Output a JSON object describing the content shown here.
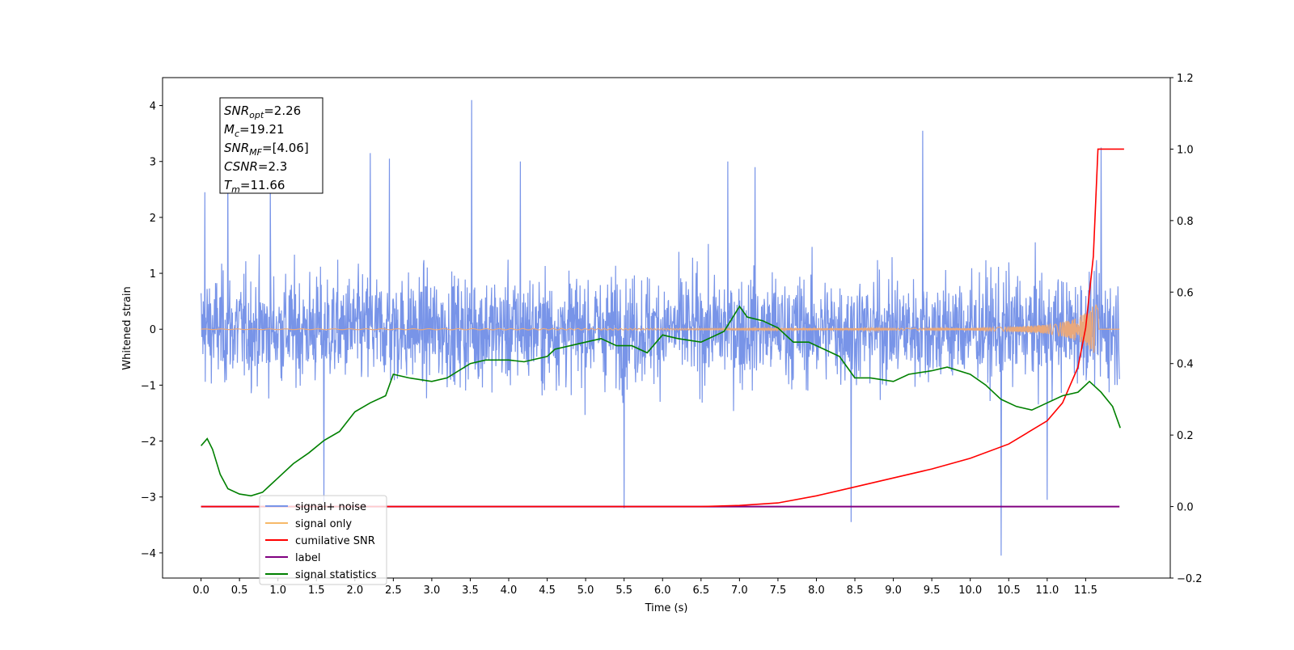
{
  "chart_data": {
    "type": "line",
    "xlabel": "Time (s)",
    "ylabel": "Whitened strain",
    "xlim": [
      -0.5,
      12.6
    ],
    "ylim": [
      -4.45,
      4.5
    ],
    "y2lim": [
      -0.2,
      1.2
    ],
    "x_ticks": [
      "0.0",
      "0.5",
      "1.0",
      "1.5",
      "2.0",
      "2.5",
      "3.0",
      "3.5",
      "4.0",
      "4.5",
      "5.0",
      "5.5",
      "6.0",
      "6.5",
      "7.0",
      "7.5",
      "8.0",
      "8.5",
      "9.0",
      "9.5",
      "10.0",
      "10.5",
      "11.0",
      "11.5"
    ],
    "y_ticks": [
      "4",
      "3",
      "2",
      "1",
      "0",
      "−1",
      "−2",
      "−3",
      "−4"
    ],
    "y2_ticks": [
      "1.2",
      "1.0",
      "0.8",
      "0.6",
      "0.4",
      "0.2",
      "0.0",
      "−0.2"
    ],
    "annotations": [
      {
        "name": "SNR",
        "sub": "opt",
        "value": "=2.26"
      },
      {
        "name": "M",
        "sub": "c",
        "value": "=19.21"
      },
      {
        "name": "SNR",
        "sub": "MF",
        "value": "=[4.06]"
      },
      {
        "name": "CSNR",
        "sub": "",
        "value": "=2.3"
      },
      {
        "name": "T",
        "sub": "m",
        "value": "=11.66"
      }
    ],
    "legend_position": "lower-left",
    "series": [
      {
        "name": "signal+ noise",
        "color": "#7894e8",
        "axis": "left",
        "description": "noise spikes; selected extrema",
        "peaks_x": [
          0.05,
          0.35,
          0.9,
          1.6,
          2.2,
          2.45,
          3.52,
          4.15,
          5.5,
          6.85,
          7.2,
          8.45,
          9.38,
          10.4,
          11.0,
          11.7
        ],
        "peaks_y": [
          2.45,
          2.9,
          2.6,
          -3.1,
          3.15,
          3.05,
          4.1,
          3.0,
          -3.2,
          3.0,
          2.9,
          -3.45,
          3.55,
          -4.05,
          -3.05,
          3.25
        ],
        "envelope": 2.0
      },
      {
        "name": "signal only",
        "color": "#e8a87c",
        "axis": "left",
        "x": [
          0,
          10.0,
          10.5,
          11.0,
          11.3,
          11.5,
          11.6,
          11.66,
          11.67,
          12.0
        ],
        "amplitude": [
          0.005,
          0.02,
          0.04,
          0.08,
          0.16,
          0.3,
          0.42,
          0.45,
          0.0,
          0.0
        ]
      },
      {
        "name": "cumilative SNR",
        "color": "#ff0000",
        "axis": "right",
        "x": [
          0,
          6.5,
          7.0,
          7.5,
          8.0,
          8.5,
          9.0,
          9.5,
          10.0,
          10.5,
          11.0,
          11.2,
          11.4,
          11.5,
          11.6,
          11.66,
          12.0
        ],
        "y": [
          0.0,
          0.0,
          0.003,
          0.01,
          0.03,
          0.055,
          0.08,
          0.105,
          0.135,
          0.175,
          0.24,
          0.29,
          0.39,
          0.5,
          0.7,
          1.0,
          1.0
        ]
      },
      {
        "name": "label",
        "color": "#800080",
        "axis": "right",
        "x": [
          0,
          11.94
        ],
        "y": [
          0.0,
          0.0
        ]
      },
      {
        "name": "signal statistics",
        "color": "#008000",
        "axis": "right",
        "x": [
          0.0,
          0.08,
          0.15,
          0.25,
          0.35,
          0.5,
          0.65,
          0.8,
          0.9,
          1.0,
          1.2,
          1.4,
          1.6,
          1.8,
          2.0,
          2.2,
          2.4,
          2.5,
          2.7,
          3.0,
          3.2,
          3.5,
          3.7,
          4.0,
          4.2,
          4.5,
          4.6,
          5.0,
          5.2,
          5.4,
          5.6,
          5.8,
          6.0,
          6.2,
          6.5,
          6.8,
          7.0,
          7.1,
          7.3,
          7.5,
          7.7,
          7.9,
          8.1,
          8.3,
          8.5,
          8.7,
          9.0,
          9.2,
          9.5,
          9.7,
          10.0,
          10.2,
          10.4,
          10.6,
          10.8,
          11.0,
          11.2,
          11.4,
          11.55,
          11.7,
          11.85,
          11.95
        ],
        "y": [
          0.17,
          0.19,
          0.16,
          0.09,
          0.05,
          0.035,
          0.03,
          0.04,
          0.06,
          0.08,
          0.12,
          0.15,
          0.185,
          0.21,
          0.265,
          0.29,
          0.31,
          0.37,
          0.36,
          0.35,
          0.36,
          0.4,
          0.41,
          0.41,
          0.405,
          0.42,
          0.44,
          0.46,
          0.47,
          0.45,
          0.45,
          0.43,
          0.48,
          0.47,
          0.46,
          0.49,
          0.56,
          0.53,
          0.52,
          0.5,
          0.46,
          0.46,
          0.44,
          0.42,
          0.36,
          0.36,
          0.35,
          0.37,
          0.38,
          0.39,
          0.37,
          0.34,
          0.3,
          0.28,
          0.27,
          0.29,
          0.31,
          0.32,
          0.35,
          0.32,
          0.28,
          0.22
        ]
      }
    ]
  },
  "legend": {
    "items": [
      {
        "label": "signal+ noise",
        "color": "#7894e8"
      },
      {
        "label": "signal only",
        "color": "#f6b968"
      },
      {
        "label": "cumilative SNR",
        "color": "#ff0000"
      },
      {
        "label": "label",
        "color": "#800080"
      },
      {
        "label": "signal statistics",
        "color": "#008000"
      }
    ]
  }
}
